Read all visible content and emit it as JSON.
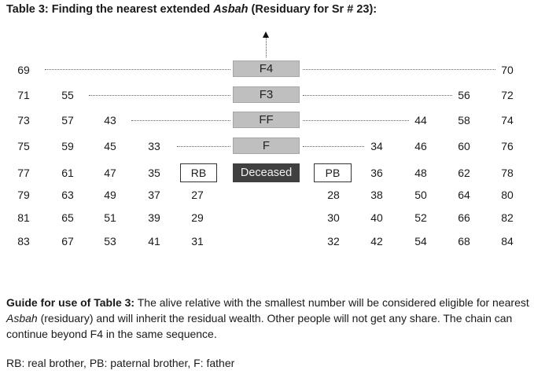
{
  "title": {
    "prefix": "Table 3: Finding the nearest extended ",
    "italic": "Asbah",
    "suffix": " (Residuary for Sr # 23):"
  },
  "center_boxes": {
    "f4": "F4",
    "f3": "F3",
    "ff": "FF",
    "f": "F",
    "deceased": "Deceased"
  },
  "side_boxes": {
    "rb": "RB",
    "pb": "PB"
  },
  "grid": {
    "row1": {
      "left": [
        "69"
      ],
      "right": [
        "70"
      ]
    },
    "row2": {
      "left": [
        "71",
        "55"
      ],
      "right": [
        "56",
        "72"
      ]
    },
    "row3": {
      "left": [
        "73",
        "57",
        "43"
      ],
      "right": [
        "44",
        "58",
        "74"
      ]
    },
    "row4": {
      "left": [
        "75",
        "59",
        "45",
        "33"
      ],
      "right": [
        "34",
        "46",
        "60",
        "76"
      ]
    },
    "row5": {
      "left": [
        "77",
        "61",
        "47",
        "35"
      ],
      "right": [
        "36",
        "48",
        "62",
        "78"
      ]
    },
    "row6": {
      "left": [
        "79",
        "63",
        "49",
        "37",
        "27"
      ],
      "right": [
        "28",
        "38",
        "50",
        "64",
        "80"
      ]
    },
    "row7": {
      "left": [
        "81",
        "65",
        "51",
        "39",
        "29"
      ],
      "right": [
        "30",
        "40",
        "52",
        "66",
        "82"
      ]
    },
    "row8": {
      "left": [
        "83",
        "67",
        "53",
        "41",
        "31"
      ],
      "right": [
        "32",
        "42",
        "54",
        "68",
        "84"
      ]
    }
  },
  "guide": {
    "label": "Guide for use of Table 3:",
    "text1": " The alive relative with the smallest number will be considered eligible for nearest ",
    "italic": "Asbah",
    "text2": " (residuary) and will inherit the residual wealth. Other people will not get any share. The chain can continue beyond F4 in the same sequence."
  },
  "legend": "RB: real brother, PB: paternal brother, F: father"
}
